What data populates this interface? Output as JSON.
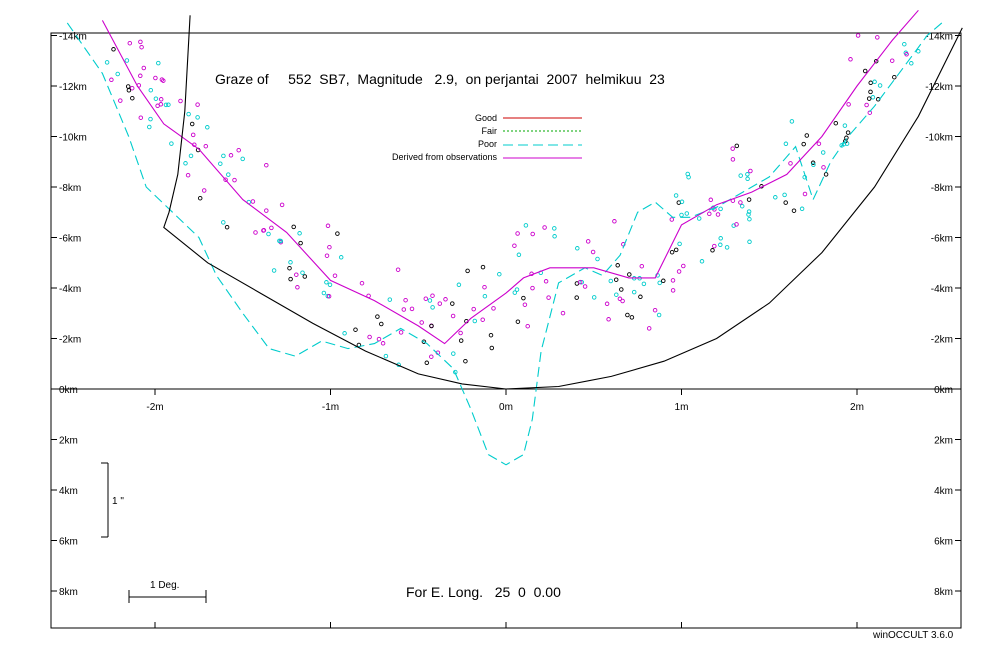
{
  "title": "Graze of     552  SB7,  Magnitude   2.9,  on perjantai  2007  helmikuu  23",
  "longitude_note": "For E. Long.   25  0  0.00",
  "footer": "winOCCULT 3.6.0",
  "scale_markers": {
    "arcsec_label": "1 \"",
    "degree_label": "1 Deg."
  },
  "legend": [
    {
      "label": "Good",
      "color": "#cc0000",
      "style": "solid"
    },
    {
      "label": "Fair",
      "color": "#00aa00",
      "style": "dotted"
    },
    {
      "label": "Poor",
      "color": "#00cccc",
      "style": "dashed"
    },
    {
      "label": "Derived from observations",
      "color": "#cc00cc",
      "style": "solid"
    }
  ],
  "chart_data": {
    "type": "scatter",
    "xlim": [
      -2.5,
      2.6
    ],
    "ylim": [
      9,
      -14.5
    ],
    "x_ticks": [
      {
        "value": -2,
        "label": "-2m"
      },
      {
        "value": -1,
        "label": "-1m"
      },
      {
        "value": 0,
        "label": "0m"
      },
      {
        "value": 1,
        "label": "1m"
      },
      {
        "value": 2,
        "label": "2m"
      }
    ],
    "y_ticks": [
      {
        "value": -14,
        "label": "-14km"
      },
      {
        "value": -12,
        "label": "-12km"
      },
      {
        "value": -10,
        "label": "-10km"
      },
      {
        "value": -8,
        "label": "-8km"
      },
      {
        "value": -6,
        "label": "-6km"
      },
      {
        "value": -4,
        "label": "-4km"
      },
      {
        "value": -2,
        "label": "-2km"
      },
      {
        "value": 0,
        "label": "0km"
      },
      {
        "value": 2,
        "label": "2km"
      },
      {
        "value": 4,
        "label": "4km"
      },
      {
        "value": 6,
        "label": "6km"
      },
      {
        "value": 8,
        "label": "8km"
      }
    ],
    "series": [
      {
        "name": "Poor",
        "color": "#00cccc",
        "style": "dashed",
        "points": [
          [
            -2.5,
            -14.5
          ],
          [
            -2.3,
            -12.5
          ],
          [
            -2.15,
            -10
          ],
          [
            -2.05,
            -8
          ],
          [
            -1.9,
            -7
          ],
          [
            -1.75,
            -6
          ],
          [
            -1.65,
            -4.5
          ],
          [
            -1.5,
            -3
          ],
          [
            -1.35,
            -1.6
          ],
          [
            -1.2,
            -1.3
          ],
          [
            -1.05,
            -1.9
          ],
          [
            -0.9,
            -1.6
          ],
          [
            -0.75,
            -1.8
          ],
          [
            -0.6,
            -2.4
          ],
          [
            -0.45,
            -1.8
          ],
          [
            -0.3,
            -0.8
          ],
          [
            -0.2,
            0.8
          ],
          [
            -0.1,
            2.6
          ],
          [
            0,
            3.0
          ],
          [
            0.1,
            2.6
          ],
          [
            0.15,
            1.2
          ],
          [
            0.2,
            -1.5
          ],
          [
            0.3,
            -4.2
          ],
          [
            0.45,
            -4.8
          ],
          [
            0.55,
            -4.5
          ],
          [
            0.65,
            -5.3
          ],
          [
            0.75,
            -7
          ],
          [
            0.85,
            -7.4
          ],
          [
            0.95,
            -6.8
          ],
          [
            1.05,
            -6.8
          ],
          [
            1.2,
            -7.2
          ],
          [
            1.35,
            -7.8
          ],
          [
            1.5,
            -8.4
          ],
          [
            1.65,
            -9.6
          ],
          [
            1.75,
            -7.5
          ],
          [
            1.85,
            -9
          ],
          [
            1.95,
            -10
          ],
          [
            2.1,
            -11.2
          ],
          [
            2.25,
            -12.6
          ],
          [
            2.4,
            -14
          ],
          [
            2.5,
            -14.6
          ]
        ]
      },
      {
        "name": "Derived from observations",
        "color": "#cc00cc",
        "style": "solid",
        "points": [
          [
            -2.3,
            -14.6
          ],
          [
            -2.1,
            -12
          ],
          [
            -1.95,
            -10.5
          ],
          [
            -1.75,
            -9.5
          ],
          [
            -1.5,
            -7.5
          ],
          [
            -1.25,
            -6.2
          ],
          [
            -1,
            -4.3
          ],
          [
            -0.75,
            -3.5
          ],
          [
            -0.5,
            -2.5
          ],
          [
            -0.35,
            -1.8
          ],
          [
            -0.2,
            -2.8
          ],
          [
            0,
            -3.8
          ],
          [
            0.1,
            -4.4
          ],
          [
            0.25,
            -4.8
          ],
          [
            0.5,
            -4.8
          ],
          [
            0.7,
            -4.4
          ],
          [
            0.85,
            -4.4
          ],
          [
            1,
            -6.5
          ],
          [
            1.2,
            -7.3
          ],
          [
            1.4,
            -7.8
          ],
          [
            1.6,
            -8.5
          ],
          [
            1.8,
            -10
          ],
          [
            2,
            -12
          ],
          [
            2.2,
            -13.8
          ],
          [
            2.35,
            -15
          ]
        ]
      },
      {
        "name": "",
        "color": "#000000",
        "style": "solid",
        "points": [
          [
            -1.8,
            -14.8
          ],
          [
            -1.83,
            -11
          ],
          [
            -1.87,
            -8.5
          ],
          [
            -1.92,
            -7
          ],
          [
            -1.95,
            -6.4
          ],
          [
            -1.7,
            -5
          ],
          [
            -1.4,
            -3.8
          ],
          [
            -1.1,
            -2.6
          ],
          [
            -0.8,
            -1.5
          ],
          [
            -0.5,
            -0.6
          ],
          [
            -0.25,
            -0.2
          ],
          [
            0,
            0
          ],
          [
            0.3,
            -0.1
          ],
          [
            0.6,
            -0.5
          ],
          [
            0.9,
            -1.1
          ],
          [
            1.2,
            -2
          ],
          [
            1.5,
            -3.4
          ],
          [
            1.8,
            -5.4
          ],
          [
            2.1,
            -8
          ],
          [
            2.35,
            -10.8
          ],
          [
            2.6,
            -14.3
          ]
        ]
      }
    ]
  }
}
